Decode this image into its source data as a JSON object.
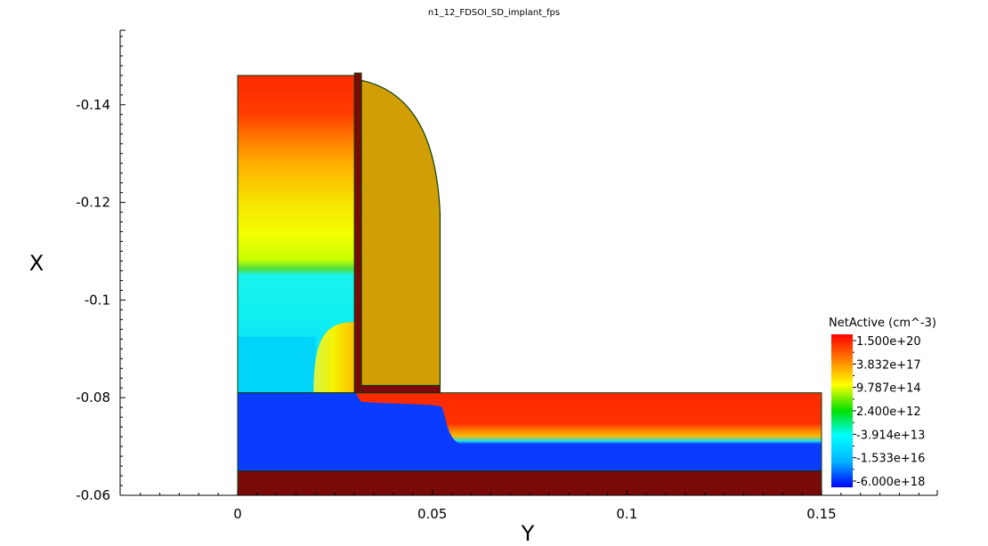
{
  "chart_data": {
    "type": "heatmap",
    "title": "n1_12_FDSOI_SD_implant_fps",
    "xlabel": "Y",
    "ylabel": "X",
    "xlim": [
      -0.03,
      0.18
    ],
    "ylim": [
      -0.06,
      -0.155
    ],
    "x_ticks": [
      {
        "value": 0,
        "label": "0"
      },
      {
        "value": 0.05,
        "label": "0.05"
      },
      {
        "value": 0.1,
        "label": "0.1"
      },
      {
        "value": 0.15,
        "label": "0.15"
      }
    ],
    "y_ticks": [
      {
        "value": -0.14,
        "label": "-0.14"
      },
      {
        "value": -0.12,
        "label": "-0.12"
      },
      {
        "value": -0.1,
        "label": "-0.1"
      },
      {
        "value": -0.08,
        "label": "-0.08"
      },
      {
        "value": -0.06,
        "label": "-0.06"
      }
    ],
    "legend": {
      "title": "NetActive (cm^-3)",
      "placement": "right",
      "labels": [
        "1.500e+20",
        "3.832e+17",
        "9.787e+14",
        "2.400e+12",
        "-3.914e+13",
        "-1.533e+16",
        "-6.000e+18"
      ]
    },
    "regions": {
      "gate_stack": {
        "y": [
          0,
          0.03
        ],
        "x": [
          -0.146,
          -0.081
        ]
      },
      "gate_liner": {
        "y": [
          0.03,
          0.0318
        ],
        "x": [
          -0.1465,
          -0.081
        ]
      },
      "spacer": {
        "y": [
          0.0318,
          0.052
        ],
        "x": [
          -0.145,
          -0.0825
        ]
      },
      "spacer_foot": {
        "y": [
          0.0318,
          0.052
        ],
        "x": [
          -0.0825,
          -0.081
        ]
      },
      "silicon_film": {
        "y": [
          0,
          0.15
        ],
        "x": [
          -0.081,
          -0.065
        ]
      },
      "source_drain_implant": {
        "y": [
          0.055,
          0.15
        ],
        "x": [
          -0.081,
          -0.0705
        ]
      },
      "buried_oxide": {
        "y": [
          0,
          0.15
        ],
        "x": [
          -0.065,
          -0.06
        ]
      }
    }
  }
}
